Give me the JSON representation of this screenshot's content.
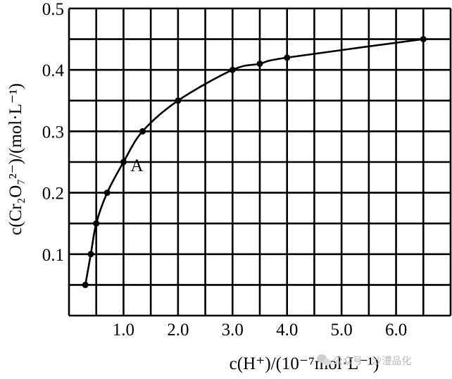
{
  "chart_data": {
    "type": "line",
    "title": "",
    "xlabel": "c(H⁺)/(10⁻⁷mol·L⁻¹)",
    "ylabel": "c(Cr₂O₇²⁻)/(mol·L⁻¹)",
    "xlim": [
      0,
      7.0
    ],
    "ylim": [
      0,
      0.5
    ],
    "x_tick_labels": [
      "1.0",
      "2.0",
      "3.0",
      "4.0",
      "5.0",
      "6.0"
    ],
    "y_tick_labels": [
      "0.1",
      "0.2",
      "0.3",
      "0.4",
      "0.5"
    ],
    "grid": true,
    "series": [
      {
        "x": [
          0.3,
          0.4,
          0.5,
          0.7,
          1.0,
          1.35,
          2.0,
          3.0,
          3.5,
          4.0,
          6.5
        ],
        "y": [
          0.05,
          0.1,
          0.15,
          0.2,
          0.25,
          0.3,
          0.35,
          0.4,
          0.41,
          0.42,
          0.45
        ]
      }
    ],
    "annotations": [
      {
        "text": "A",
        "x": 1.0,
        "y": 0.25
      }
    ]
  },
  "watermark": {
    "text": "公众号 · 沙澧品化",
    "icon": "wechat-icon"
  },
  "colors": {
    "ink": "#000000",
    "watermark": "#b8b8b8"
  }
}
